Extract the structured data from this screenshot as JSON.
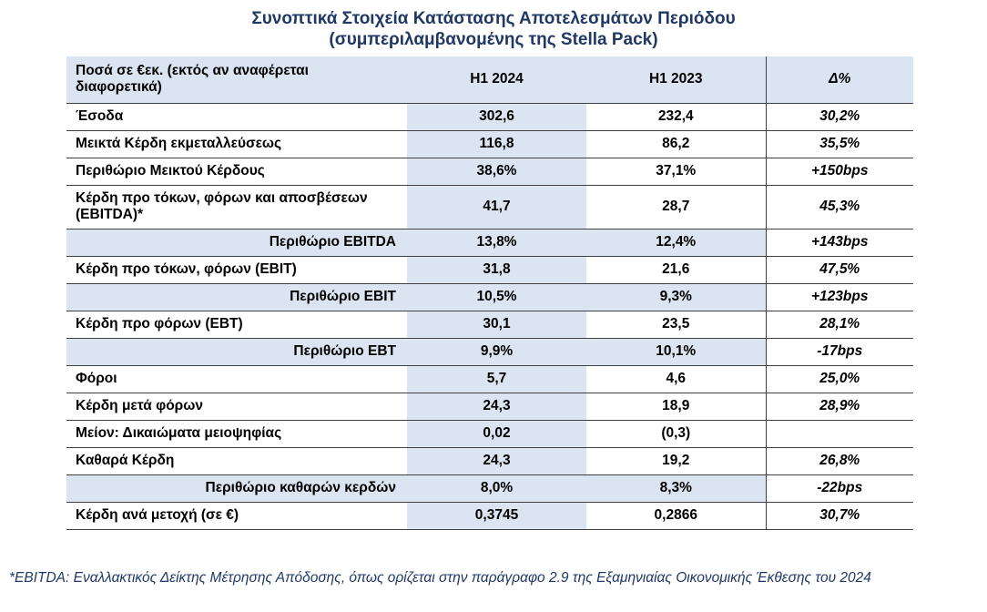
{
  "title": {
    "line1": "Συνοπτικά Στοιχεία Κατάστασης Αποτελεσμάτων Περιόδου",
    "line2": "(συμπεριλαμβανομένης της Stella Pack)"
  },
  "table": {
    "header": {
      "label": "Ποσά σε €εκ. (εκτός αν αναφέρεται διαφορετικά)",
      "h1_2024": "H1 2024",
      "h1_2023": "H1 2023",
      "delta": "Δ%"
    },
    "rows": [
      {
        "label": "Έσοδα",
        "h1_2024": "302,6",
        "h1_2023": "232,4",
        "delta": "30,2%"
      },
      {
        "label": "Μεικτά Κέρδη εκμεταλλεύσεως",
        "h1_2024": "116,8",
        "h1_2023": "86,2",
        "delta": "35,5%"
      },
      {
        "label": "Περιθώριο Μεικτού Κέρδους",
        "h1_2024": "38,6%",
        "h1_2023": "37,1%",
        "delta": "+150bps"
      },
      {
        "label": "Κέρδη προ τόκων, φόρων και αποσβέσεων (EBITDA)*",
        "h1_2024": "41,7",
        "h1_2023": "28,7",
        "delta": "45,3%"
      },
      {
        "label": "Περιθώριο EBITDA",
        "h1_2024": "13,8%",
        "h1_2023": "12,4%",
        "delta": "+143bps"
      },
      {
        "label": "Κέρδη προ τόκων, φόρων (EBIT)",
        "h1_2024": "31,8",
        "h1_2023": "21,6",
        "delta": "47,5%"
      },
      {
        "label": "Περιθώριο EBIT",
        "h1_2024": "10,5%",
        "h1_2023": "9,3%",
        "delta": "+123bps"
      },
      {
        "label": "Κέρδη προ φόρων (EBT)",
        "h1_2024": "30,1",
        "h1_2023": "23,5",
        "delta": "28,1%"
      },
      {
        "label": "Περιθώριο EBT",
        "h1_2024": "9,9%",
        "h1_2023": "10,1%",
        "delta": "-17bps"
      },
      {
        "label": "Φόροι",
        "h1_2024": "5,7",
        "h1_2023": "4,6",
        "delta": "25,0%"
      },
      {
        "label": "Κέρδη μετά φόρων",
        "h1_2024": "24,3",
        "h1_2023": "18,9",
        "delta": "28,9%"
      },
      {
        "label": "Μείον: Δικαιώματα μειοψηφίας",
        "h1_2024": "0,02",
        "h1_2023": "(0,3)",
        "delta": ""
      },
      {
        "label": "Καθαρά Κέρδη",
        "h1_2024": "24,3",
        "h1_2023": "19,2",
        "delta": "26,8%"
      },
      {
        "label": "Περιθώριο καθαρών κερδών",
        "h1_2024": "8,0%",
        "h1_2023": "8,3%",
        "delta": "-22bps"
      },
      {
        "label": "Κέρδη ανά μετοχή (σε €)",
        "h1_2024": "0,3745",
        "h1_2023": "0,2866",
        "delta": "30,7%"
      }
    ]
  },
  "footnote": "*EBITDA: Εναλλακτικός Δείκτης Μέτρησης Απόδοσης, όπως ορίζεται στην παράγραφο 2.9 της Εξαμηνιαίας Οικονομικής Έκθεσης του 2024"
}
